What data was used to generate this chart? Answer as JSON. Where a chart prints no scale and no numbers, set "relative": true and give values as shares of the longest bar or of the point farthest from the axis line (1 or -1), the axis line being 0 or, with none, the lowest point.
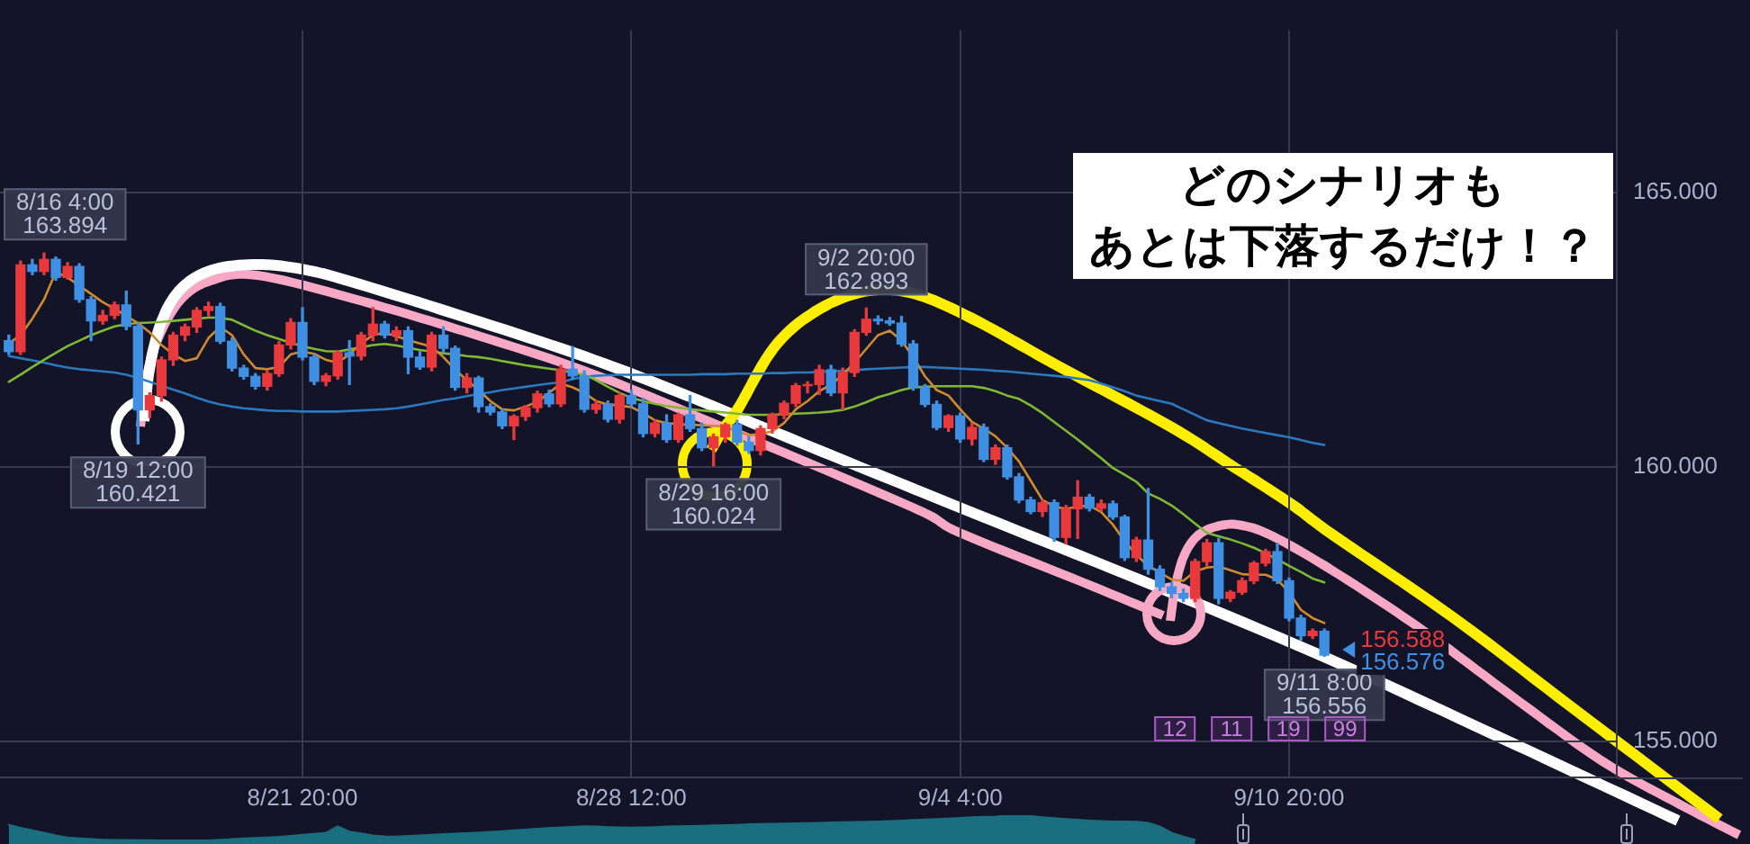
{
  "chart_data": [
    {
      "type": "candlestick",
      "title": "どのシナリオも",
      "subtitle": "あとは下落するだけ！？",
      "categories": [
        null,
        null,
        null,
        null,
        null,
        null,
        null,
        null,
        null,
        null,
        null,
        null,
        null,
        null,
        null,
        null,
        null,
        null,
        null,
        null,
        null,
        null,
        null,
        null,
        null,
        "8/21 20:00",
        null,
        null,
        null,
        null,
        null,
        null,
        null,
        null,
        null,
        null,
        null,
        null,
        null,
        null,
        null,
        null,
        null,
        null,
        null,
        null,
        null,
        null,
        null,
        null,
        null,
        null,
        null,
        "8/28 12:00",
        null,
        null,
        null,
        null,
        null,
        null,
        null,
        null,
        null,
        null,
        null,
        null,
        null,
        null,
        null,
        null,
        null,
        null,
        null,
        null,
        null,
        null,
        null,
        null,
        null,
        null,
        null,
        "9/4 4:00",
        null,
        null,
        null,
        null,
        null,
        null,
        null,
        null,
        null,
        null,
        null,
        null,
        null,
        null,
        null,
        null,
        null,
        null,
        null,
        null,
        null,
        null,
        null,
        null,
        null,
        null,
        null,
        "9/10 20:00",
        null,
        null,
        null
      ],
      "ohlc": [
        [
          162.3,
          162.4,
          162.05,
          162.1
        ],
        [
          162.1,
          163.75,
          162.05,
          163.68
        ],
        [
          163.68,
          163.78,
          163.5,
          163.56
        ],
        [
          163.56,
          163.894,
          163.5,
          163.78
        ],
        [
          163.78,
          163.82,
          163.4,
          163.45
        ],
        [
          163.45,
          163.72,
          163.42,
          163.65
        ],
        [
          163.65,
          163.7,
          163.0,
          163.05
        ],
        [
          163.05,
          163.1,
          162.3,
          162.66
        ],
        [
          162.66,
          162.85,
          162.6,
          162.76
        ],
        [
          162.76,
          163.0,
          162.7,
          162.95
        ],
        [
          162.95,
          163.2,
          162.5,
          162.56
        ],
        [
          162.56,
          162.62,
          160.421,
          161.04
        ],
        [
          161.04,
          161.35,
          160.9,
          161.3
        ],
        [
          161.3,
          162.0,
          161.2,
          161.95
        ],
        [
          161.95,
          162.45,
          161.85,
          162.4
        ],
        [
          162.4,
          162.6,
          162.3,
          162.55
        ],
        [
          162.55,
          162.9,
          162.45,
          162.85
        ],
        [
          162.85,
          163.0,
          162.75,
          162.92
        ],
        [
          162.92,
          162.98,
          162.25,
          162.29
        ],
        [
          162.29,
          162.35,
          161.75,
          161.8
        ],
        [
          161.8,
          161.85,
          161.6,
          161.65
        ],
        [
          161.65,
          161.7,
          161.42,
          161.47
        ],
        [
          161.47,
          161.75,
          161.4,
          161.7
        ],
        [
          161.7,
          162.28,
          161.65,
          162.22
        ],
        [
          162.22,
          162.7,
          162.15,
          162.63
        ],
        [
          162.63,
          162.9,
          161.95,
          162.0
        ],
        [
          162.0,
          162.05,
          161.5,
          161.56
        ],
        [
          161.56,
          161.7,
          161.48,
          161.66
        ],
        [
          161.66,
          162.12,
          161.6,
          162.08
        ],
        [
          162.08,
          162.3,
          161.5,
          162.02
        ],
        [
          162.02,
          162.45,
          161.95,
          162.4
        ],
        [
          162.4,
          162.9,
          162.3,
          162.6
        ],
        [
          162.6,
          162.65,
          162.35,
          162.4
        ],
        [
          162.4,
          162.55,
          162.3,
          162.48
        ],
        [
          162.48,
          162.55,
          161.7,
          162.0
        ],
        [
          162.0,
          162.1,
          161.78,
          161.82
        ],
        [
          161.82,
          162.45,
          161.75,
          162.4
        ],
        [
          162.4,
          162.55,
          162.1,
          162.16
        ],
        [
          162.16,
          162.2,
          161.4,
          161.45
        ],
        [
          161.45,
          161.7,
          161.35,
          161.62
        ],
        [
          161.62,
          161.65,
          161.0,
          161.1
        ],
        [
          161.1,
          161.15,
          160.95,
          161.0
        ],
        [
          161.0,
          161.05,
          160.7,
          160.75
        ],
        [
          160.75,
          160.95,
          160.5,
          160.92
        ],
        [
          160.92,
          161.12,
          160.85,
          161.08
        ],
        [
          161.08,
          161.38,
          161.0,
          161.33
        ],
        [
          161.33,
          161.4,
          161.1,
          161.15
        ],
        [
          161.15,
          161.85,
          161.1,
          161.78
        ],
        [
          161.78,
          162.19,
          161.6,
          161.66
        ],
        [
          161.66,
          161.75,
          161.0,
          161.05
        ],
        [
          161.05,
          161.2,
          160.98,
          161.14
        ],
        [
          161.14,
          161.2,
          160.82,
          160.87
        ],
        [
          160.87,
          161.35,
          160.8,
          161.3
        ],
        [
          161.3,
          161.4,
          161.1,
          161.15
        ],
        [
          161.15,
          161.25,
          160.55,
          160.61
        ],
        [
          160.61,
          160.85,
          160.55,
          160.8
        ],
        [
          160.8,
          160.95,
          160.45,
          160.5
        ],
        [
          160.5,
          160.98,
          160.45,
          160.95
        ],
        [
          160.95,
          161.3,
          160.65,
          160.7
        ],
        [
          160.7,
          160.8,
          160.3,
          160.35
        ],
        [
          160.35,
          160.6,
          160.024,
          160.55
        ],
        [
          160.55,
          160.8,
          160.45,
          160.77
        ],
        [
          160.77,
          160.85,
          160.4,
          160.45
        ],
        [
          160.45,
          160.55,
          160.25,
          160.3
        ],
        [
          160.3,
          160.75,
          160.22,
          160.7
        ],
        [
          160.7,
          160.98,
          160.62,
          160.95
        ],
        [
          160.95,
          161.2,
          160.88,
          161.16
        ],
        [
          161.16,
          161.52,
          161.1,
          161.48
        ],
        [
          161.48,
          161.55,
          161.35,
          161.5
        ],
        [
          161.5,
          161.85,
          161.32,
          161.77
        ],
        [
          161.77,
          161.85,
          161.3,
          161.35
        ],
        [
          161.35,
          161.8,
          161.05,
          161.72
        ],
        [
          161.72,
          162.5,
          161.65,
          162.45
        ],
        [
          162.45,
          162.893,
          162.4,
          162.69
        ],
        [
          162.69,
          162.75,
          162.6,
          162.66
        ],
        [
          162.66,
          162.72,
          162.58,
          162.62
        ],
        [
          162.62,
          162.74,
          162.2,
          162.24
        ],
        [
          162.24,
          162.3,
          161.4,
          161.45
        ],
        [
          161.45,
          161.5,
          161.1,
          161.14
        ],
        [
          161.14,
          161.2,
          160.68,
          160.72
        ],
        [
          160.72,
          160.95,
          160.65,
          160.93
        ],
        [
          160.93,
          160.98,
          160.45,
          160.51
        ],
        [
          160.51,
          160.8,
          160.4,
          160.72
        ],
        [
          160.72,
          160.78,
          160.1,
          160.14
        ],
        [
          160.14,
          160.4,
          160.05,
          160.35
        ],
        [
          160.35,
          160.4,
          159.78,
          159.82
        ],
        [
          159.82,
          159.88,
          159.35,
          159.4
        ],
        [
          159.4,
          159.45,
          159.15,
          159.19
        ],
        [
          159.19,
          159.4,
          159.1,
          159.35
        ],
        [
          159.35,
          159.4,
          158.65,
          158.72
        ],
        [
          158.72,
          159.3,
          158.6,
          159.24
        ],
        [
          159.24,
          159.75,
          158.7,
          159.45
        ],
        [
          159.45,
          159.5,
          159.2,
          159.25
        ],
        [
          159.25,
          159.4,
          159.2,
          159.33
        ],
        [
          159.33,
          159.38,
          159.05,
          159.09
        ],
        [
          159.09,
          159.12,
          158.3,
          158.35
        ],
        [
          158.35,
          158.72,
          158.28,
          158.67
        ],
        [
          158.67,
          159.61,
          158.05,
          158.14
        ],
        [
          158.14,
          158.2,
          157.75,
          157.82
        ],
        [
          157.82,
          157.9,
          157.62,
          157.7
        ],
        [
          157.7,
          157.78,
          157.55,
          157.61
        ],
        [
          157.61,
          158.32,
          157.55,
          158.28
        ],
        [
          158.28,
          158.68,
          158.2,
          158.62
        ],
        [
          158.62,
          158.7,
          157.51,
          157.61
        ],
        [
          157.61,
          157.75,
          157.55,
          157.72
        ],
        [
          157.72,
          157.98,
          157.68,
          157.93
        ],
        [
          157.93,
          158.28,
          157.88,
          158.25
        ],
        [
          158.25,
          158.5,
          158.2,
          158.46
        ],
        [
          158.46,
          158.61,
          157.88,
          157.93
        ],
        [
          157.93,
          157.98,
          157.2,
          157.25
        ],
        [
          157.25,
          157.3,
          156.85,
          156.93
        ],
        [
          156.93,
          157.05,
          156.88,
          157.01
        ],
        [
          157.01,
          157.05,
          156.556,
          156.576
        ]
      ],
      "colors": [
        "#3f8fe3",
        "#e8393d",
        "#3f8fe3",
        "#e8393d",
        "#3f8fe3",
        "#e8393d",
        "#3f8fe3",
        "#3f8fe3",
        "#e8393d",
        "#e8393d",
        "#3f8fe3",
        "#3f8fe3",
        "#e8393d",
        "#e8393d",
        "#e8393d",
        "#e8393d",
        "#e8393d",
        "#e8393d",
        "#3f8fe3",
        "#3f8fe3",
        "#3f8fe3",
        "#3f8fe3",
        "#e8393d",
        "#e8393d",
        "#e8393d",
        "#3f8fe3",
        "#3f8fe3",
        "#e8393d",
        "#e8393d",
        "#3f8fe3",
        "#e8393d",
        "#e8393d",
        "#3f8fe3",
        "#e8393d",
        "#3f8fe3",
        "#3f8fe3",
        "#e8393d",
        "#3f8fe3",
        "#3f8fe3",
        "#e8393d",
        "#3f8fe3",
        "#3f8fe3",
        "#3f8fe3",
        "#e8393d",
        "#e8393d",
        "#e8393d",
        "#3f8fe3",
        "#e8393d",
        "#3f8fe3",
        "#3f8fe3",
        "#e8393d",
        "#3f8fe3",
        "#e8393d",
        "#3f8fe3",
        "#3f8fe3",
        "#e8393d",
        "#3f8fe3",
        "#e8393d",
        "#3f8fe3",
        "#3f8fe3",
        "#e8393d",
        "#e8393d",
        "#3f8fe3",
        "#3f8fe3",
        "#e8393d",
        "#e8393d",
        "#e8393d",
        "#e8393d",
        "#e8393d",
        "#e8393d",
        "#3f8fe3",
        "#e8393d",
        "#e8393d",
        "#e8393d",
        "#3f8fe3",
        "#3f8fe3",
        "#3f8fe3",
        "#3f8fe3",
        "#3f8fe3",
        "#3f8fe3",
        "#e8393d",
        "#3f8fe3",
        "#e8393d",
        "#3f8fe3",
        "#e8393d",
        "#3f8fe3",
        "#3f8fe3",
        "#3f8fe3",
        "#e8393d",
        "#3f8fe3",
        "#e8393d",
        "#e8393d",
        "#3f8fe3",
        "#e8393d",
        "#3f8fe3",
        "#3f8fe3",
        "#e8393d",
        "#3f8fe3",
        "#3f8fe3",
        "#3f8fe3",
        "#3f8fe3",
        "#e8393d",
        "#e8393d",
        "#3f8fe3",
        "#e8393d",
        "#e8393d",
        "#e8393d",
        "#e8393d",
        "#3f8fe3",
        "#3f8fe3",
        "#3f8fe3",
        "#e8393d",
        "#3f8fe3"
      ],
      "series": [
        {
          "type": "line",
          "color": "#d08a2e",
          "values": [
            162.25,
            162.4,
            162.7,
            163.05,
            163.55,
            163.45,
            163.3,
            163.15,
            163.0,
            162.88,
            162.75,
            162.62,
            162.45,
            162.22,
            162.05,
            161.93,
            161.98,
            162.35,
            162.55,
            162.4,
            162.05,
            161.8,
            161.78,
            161.82,
            162.05,
            162.1,
            162.06,
            161.95,
            161.9,
            162.05,
            162.25,
            162.4,
            162.45,
            162.38,
            162.31,
            162.25,
            162.19,
            162.0,
            161.77,
            161.58,
            161.4,
            161.2,
            161.05,
            161.03,
            161.1,
            161.19,
            161.35,
            161.52,
            161.45,
            161.35,
            161.2,
            161.14,
            161.12,
            161.09,
            160.98,
            160.85,
            160.8,
            160.78,
            160.77,
            160.76,
            160.75,
            160.74,
            160.65,
            160.58,
            160.6,
            160.65,
            160.8,
            161.05,
            161.2,
            161.38,
            161.5,
            161.68,
            161.9,
            162.15,
            162.4,
            162.48,
            162.3,
            162.0,
            161.65,
            161.4,
            161.3,
            161.05,
            160.82,
            160.7,
            160.56,
            160.35,
            160.1,
            159.75,
            159.4,
            159.28,
            159.24,
            159.28,
            159.3,
            159.18,
            158.95,
            158.65,
            158.4,
            158.2,
            158.08,
            157.95,
            157.93,
            158.1,
            158.17,
            158.19,
            158.12,
            158.05,
            158.04,
            158.04,
            157.95,
            157.72,
            157.4,
            157.25,
            157.16
          ]
        },
        {
          "type": "line",
          "color": "#7fb834",
          "values": [
            161.55,
            161.68,
            161.82,
            161.95,
            162.08,
            162.2,
            162.3,
            162.4,
            162.48,
            162.56,
            162.6,
            162.62,
            162.63,
            162.64,
            162.66,
            162.68,
            162.7,
            162.72,
            162.72,
            162.68,
            162.58,
            162.48,
            162.4,
            162.33,
            162.26,
            162.2,
            162.15,
            162.11,
            162.1,
            162.14,
            162.18,
            162.22,
            162.24,
            162.21,
            162.17,
            162.13,
            162.1,
            162.07,
            162.05,
            162.02,
            162.0,
            161.97,
            161.93,
            161.89,
            161.85,
            161.82,
            161.79,
            161.76,
            161.72,
            161.68,
            161.58,
            161.46,
            161.35,
            161.26,
            161.2,
            161.15,
            161.11,
            161.08,
            161.05,
            161.03,
            161.01,
            160.99,
            160.97,
            160.95,
            160.95,
            160.95,
            160.96,
            160.97,
            160.98,
            160.99,
            161.01,
            161.04,
            161.1,
            161.18,
            161.27,
            161.33,
            161.4,
            161.45,
            161.46,
            161.47,
            161.47,
            161.47,
            161.47,
            161.44,
            161.38,
            161.3,
            161.24,
            161.12,
            160.98,
            160.82,
            160.66,
            160.5,
            160.33,
            160.16,
            159.98,
            159.86,
            159.73,
            159.52,
            159.42,
            159.3,
            159.14,
            158.97,
            158.8,
            158.74,
            158.68,
            158.61,
            158.53,
            158.43,
            158.32,
            158.2,
            158.09,
            157.97,
            157.9
          ]
        },
        {
          "type": "line",
          "color": "#2a78bd",
          "values": [
            162.02,
            161.98,
            161.94,
            161.9,
            161.85,
            161.81,
            161.78,
            161.76,
            161.74,
            161.72,
            161.68,
            161.62,
            161.55,
            161.48,
            161.41,
            161.34,
            161.26,
            161.19,
            161.14,
            161.1,
            161.07,
            161.05,
            161.03,
            161.02,
            161.02,
            161.01,
            161.01,
            161.01,
            161.01,
            161.02,
            161.03,
            161.04,
            161.05,
            161.07,
            161.1,
            161.14,
            161.18,
            161.22,
            161.25,
            161.29,
            161.33,
            161.36,
            161.4,
            161.43,
            161.46,
            161.49,
            161.52,
            161.54,
            161.6,
            161.64,
            161.66,
            161.67,
            161.68,
            161.68,
            161.68,
            161.68,
            161.68,
            161.68,
            161.68,
            161.69,
            161.69,
            161.69,
            161.7,
            161.7,
            161.7,
            161.71,
            161.71,
            161.72,
            161.72,
            161.73,
            161.74,
            161.75,
            161.76,
            161.78,
            161.79,
            161.8,
            161.81,
            161.82,
            161.82,
            161.81,
            161.8,
            161.79,
            161.78,
            161.77,
            161.75,
            161.74,
            161.72,
            161.7,
            161.68,
            161.66,
            161.64,
            161.61,
            161.58,
            161.52,
            161.45,
            161.38,
            161.3,
            161.25,
            161.2,
            161.15,
            161.05,
            160.95,
            160.85,
            160.8,
            160.75,
            160.7,
            160.66,
            160.62,
            160.58,
            160.54,
            160.49,
            160.44,
            160.4
          ]
        }
      ],
      "ylim": [
        154.35,
        167.95
      ],
      "yticks": [
        {
          "value": 155,
          "label": "155.000"
        },
        {
          "value": 160,
          "label": "160.000"
        },
        {
          "value": 165,
          "label": "165.000"
        }
      ],
      "grid": true,
      "annotations": [
        {
          "text": "8/16 4:00\n163.894",
          "y": 163.894
        },
        {
          "text": "8/19 12:00\n160.421",
          "y": 160.421
        },
        {
          "text": "8/29 16:00\n160.024",
          "y": 160.024
        },
        {
          "text": "9/2 20:00\n162.893",
          "y": 162.893
        },
        {
          "text": "9/11 8:00\n156.556",
          "y": 156.556
        },
        "156.588",
        "156.576",
        "12",
        "11",
        "19",
        "99"
      ]
    },
    {
      "type": "area",
      "relative": true,
      "color": "#1a6e80",
      "categories": [
        null,
        null,
        null,
        null,
        null,
        null,
        null,
        null,
        null,
        null,
        null,
        null,
        null,
        null,
        null,
        null,
        null,
        null,
        null,
        null,
        null,
        null,
        null,
        null,
        null,
        null,
        null,
        null,
        null,
        null,
        null,
        null,
        null,
        null,
        null,
        null,
        null,
        null,
        null,
        null,
        null,
        null,
        null,
        null,
        null,
        null,
        null,
        null,
        null,
        null,
        null,
        null,
        null,
        null,
        null,
        null,
        null,
        null,
        null,
        null,
        null,
        null,
        null,
        null,
        null,
        null,
        null,
        null,
        null,
        null,
        null,
        null,
        null,
        null,
        null,
        null,
        null,
        null,
        null,
        null,
        null,
        null,
        null,
        null,
        null,
        null,
        null,
        null,
        null,
        null,
        null,
        null,
        null,
        null,
        null,
        null,
        null,
        null,
        null,
        null,
        null,
        null,
        null,
        null,
        null,
        null,
        null,
        null,
        null,
        null,
        null,
        null,
        null
      ],
      "values": [
        0.62,
        0.5,
        0.4,
        0.3,
        0.2,
        0.12,
        0.08,
        0.05,
        0.03,
        0.02,
        0.02,
        0.01,
        0.01,
        0,
        0,
        0,
        0,
        0,
        0.03,
        0.05,
        0.08,
        0.1,
        0.12,
        0.14,
        0.18,
        0.22,
        0.26,
        0.3,
        0.56,
        0.35,
        0.28,
        0.2,
        0.16,
        0.15,
        0.18,
        0.2,
        0.22,
        0.25,
        0.27,
        0.29,
        0.31,
        0.34,
        0.37,
        0.4,
        0.43,
        0.46,
        0.49,
        0.52,
        0.54,
        0.56,
        0.55,
        0.53,
        0.52,
        0.51,
        0.52,
        0.53,
        0.55,
        0.56,
        0.57,
        0.58,
        0.6,
        0.61,
        0.62,
        0.64,
        0.65,
        0.66,
        0.67,
        0.68,
        0.69,
        0.7,
        0.71,
        0.72,
        0.73,
        0.74,
        0.75,
        0.77,
        0.79,
        0.81,
        0.83,
        0.85,
        0.87,
        0.89,
        0.92,
        0.94,
        0.95,
        0.98,
        1,
        0.96,
        0.92,
        0.88,
        0.85,
        0.82,
        0.79,
        0.77,
        0.75,
        0.75,
        0.74,
        0.7,
        0.55,
        0.3,
        0.15,
        0.02,
        null,
        null,
        null,
        null,
        null,
        null,
        null,
        null,
        null,
        null,
        null
      ]
    }
  ]
}
